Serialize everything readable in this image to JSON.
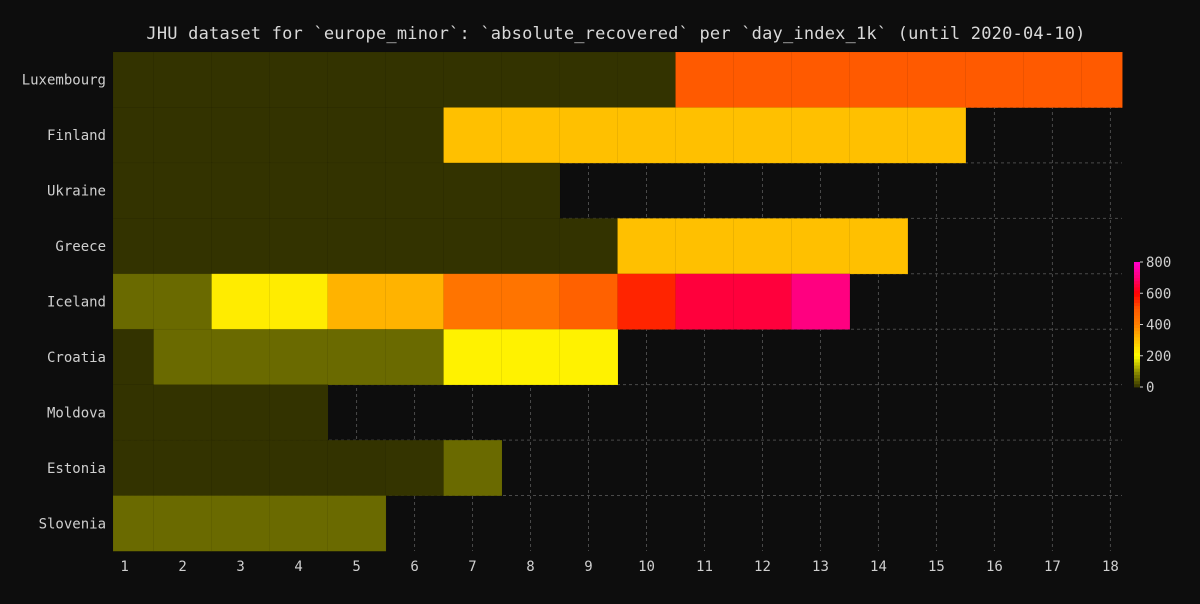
{
  "chart_data": {
    "type": "heatmap",
    "title": "JHU dataset for `europe_minor`: `absolute_recovered` per `day_index_1k` (until 2020-04-10)",
    "x": [
      1,
      2,
      3,
      4,
      5,
      6,
      7,
      8,
      9,
      10,
      11,
      12,
      13,
      14,
      15,
      16,
      17,
      18
    ],
    "xlim": [
      0.8,
      18.2
    ],
    "rows": [
      {
        "name": "Luxembourg",
        "values": [
          0,
          0,
          0,
          0,
          0,
          0,
          0,
          0,
          0,
          0,
          500,
          500,
          500,
          500,
          500,
          500,
          500,
          500
        ]
      },
      {
        "name": "Finland",
        "values": [
          0,
          0,
          0,
          0,
          0,
          0,
          300,
          300,
          300,
          300,
          300,
          300,
          300,
          300,
          300,
          null,
          null,
          null
        ]
      },
      {
        "name": "Ukraine",
        "values": [
          0,
          0,
          0,
          0,
          0,
          0,
          0,
          0,
          null,
          null,
          null,
          null,
          null,
          null,
          null,
          null,
          null,
          null
        ]
      },
      {
        "name": "Greece",
        "values": [
          0,
          0,
          0,
          0,
          0,
          0,
          0,
          0,
          0,
          300,
          300,
          300,
          300,
          300,
          null,
          null,
          null,
          null
        ]
      },
      {
        "name": "Iceland",
        "values": [
          60,
          60,
          230,
          230,
          320,
          320,
          430,
          430,
          480,
          560,
          650,
          650,
          710,
          null,
          null,
          null,
          null,
          null
        ]
      },
      {
        "name": "Croatia",
        "values": [
          0,
          60,
          60,
          60,
          60,
          60,
          220,
          220,
          220,
          null,
          null,
          null,
          null,
          null,
          null,
          null,
          null,
          null
        ]
      },
      {
        "name": "Moldova",
        "values": [
          0,
          0,
          0,
          0,
          null,
          null,
          null,
          null,
          null,
          null,
          null,
          null,
          null,
          null,
          null,
          null,
          null,
          null
        ]
      },
      {
        "name": "Estonia",
        "values": [
          0,
          0,
          0,
          0,
          0,
          1,
          60,
          null,
          null,
          null,
          null,
          null,
          null,
          null,
          null,
          null,
          null,
          null
        ]
      },
      {
        "name": "Slovenia",
        "values": [
          60,
          60,
          60,
          60,
          60,
          null,
          null,
          null,
          null,
          null,
          null,
          null,
          null,
          null,
          null,
          null,
          null,
          null
        ]
      }
    ],
    "colorbar": {
      "ticks": [
        0,
        200,
        400,
        600,
        800
      ],
      "range": [
        0,
        800
      ],
      "stops": [
        {
          "v": 0,
          "color": "#333300"
        },
        {
          "v": 100,
          "color": "#8f8f00"
        },
        {
          "v": 200,
          "color": "#ffff00"
        },
        {
          "v": 300,
          "color": "#ffc000"
        },
        {
          "v": 400,
          "color": "#ff7f00"
        },
        {
          "v": 500,
          "color": "#ff5a00"
        },
        {
          "v": 600,
          "color": "#ff0000"
        },
        {
          "v": 700,
          "color": "#ff0078"
        },
        {
          "v": 800,
          "color": "#ff00cc"
        }
      ]
    },
    "grid": true,
    "colors": {
      "background": "#0d0d0d",
      "missing": "#0d0d0d",
      "grid": "#4a4a4a",
      "text": "#cfcfcf"
    }
  }
}
